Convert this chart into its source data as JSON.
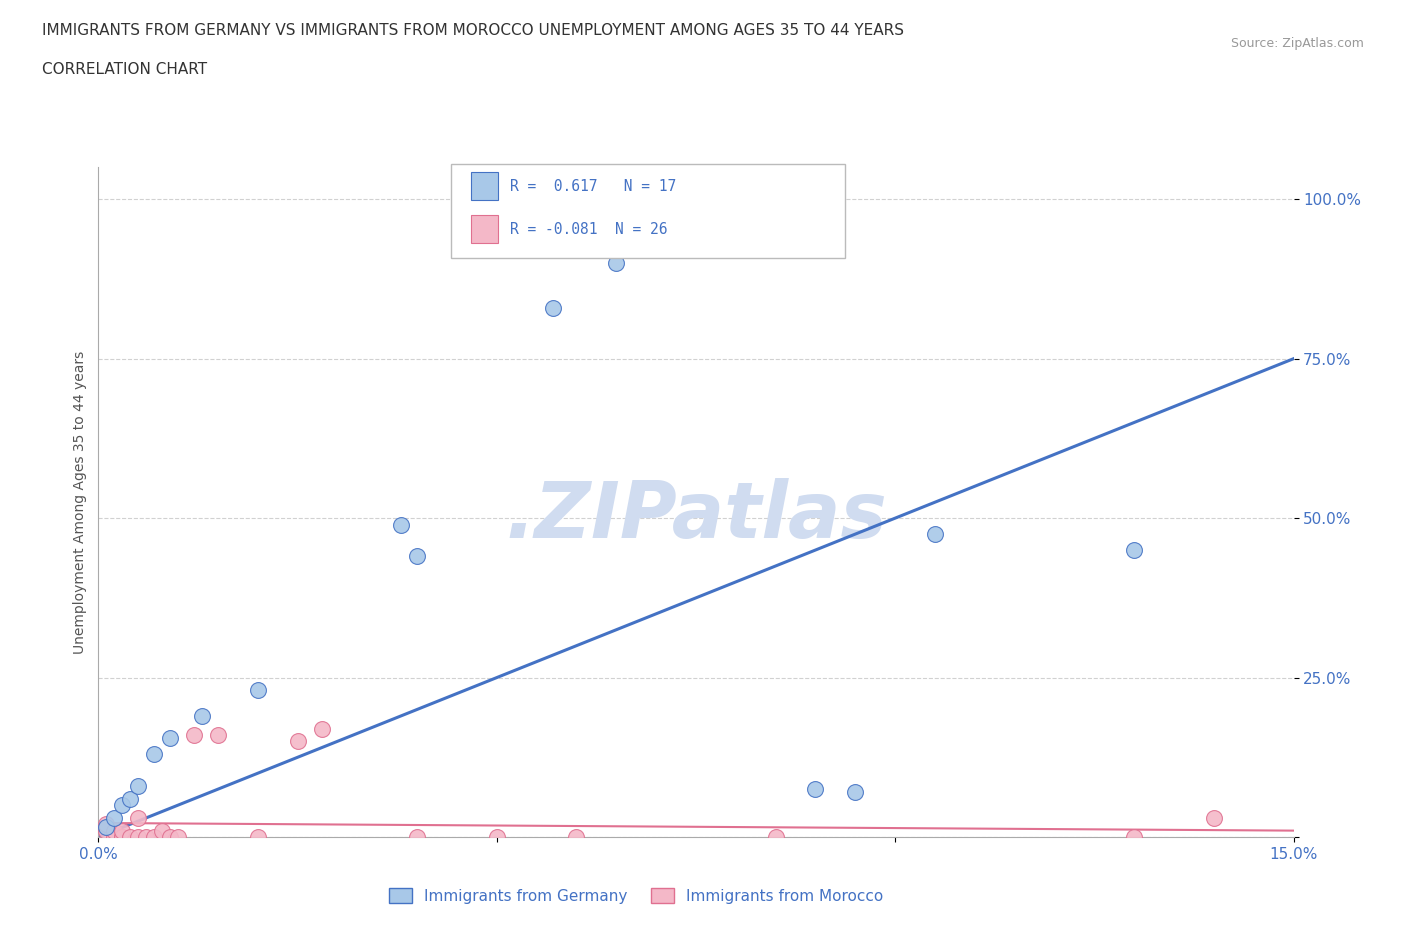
{
  "title_line1": "IMMIGRANTS FROM GERMANY VS IMMIGRANTS FROM MOROCCO UNEMPLOYMENT AMONG AGES 35 TO 44 YEARS",
  "title_line2": "CORRELATION CHART",
  "source": "Source: ZipAtlas.com",
  "ylabel": "Unemployment Among Ages 35 to 44 years",
  "xlim": [
    0.0,
    0.15
  ],
  "ylim": [
    0.0,
    1.05
  ],
  "ytick_positions": [
    0.0,
    0.25,
    0.5,
    0.75,
    1.0
  ],
  "ytick_labels": [
    "",
    "25.0%",
    "50.0%",
    "75.0%",
    "100.0%"
  ],
  "xtick_positions": [
    0.0,
    0.05,
    0.1,
    0.15
  ],
  "xtick_labels": [
    "0.0%",
    "",
    "",
    "15.0%"
  ],
  "germany_color": "#A8C8E8",
  "morocco_color": "#F4B8C8",
  "line_germany_color": "#4472C4",
  "line_morocco_color": "#E07090",
  "germany_R": 0.617,
  "germany_N": 17,
  "morocco_R": -0.081,
  "morocco_N": 26,
  "watermark_text": ".ZIPatlas",
  "watermark_color": "#D0DCF0",
  "background_color": "#FFFFFF",
  "grid_color": "#CCCCCC",
  "germany_x": [
    0.001,
    0.002,
    0.003,
    0.004,
    0.005,
    0.007,
    0.009,
    0.013,
    0.02,
    0.038,
    0.04,
    0.057,
    0.065,
    0.09,
    0.095,
    0.105,
    0.13
  ],
  "germany_y": [
    0.015,
    0.03,
    0.05,
    0.06,
    0.08,
    0.13,
    0.155,
    0.19,
    0.23,
    0.49,
    0.44,
    0.83,
    0.9,
    0.075,
    0.07,
    0.475,
    0.45
  ],
  "morocco_x": [
    0.001,
    0.001,
    0.002,
    0.002,
    0.003,
    0.003,
    0.003,
    0.004,
    0.005,
    0.005,
    0.006,
    0.007,
    0.008,
    0.009,
    0.01,
    0.012,
    0.015,
    0.02,
    0.025,
    0.028,
    0.04,
    0.05,
    0.06,
    0.085,
    0.13,
    0.14
  ],
  "morocco_y": [
    0.01,
    0.02,
    0.0,
    0.01,
    0.0,
    0.0,
    0.01,
    0.0,
    0.0,
    0.03,
    0.0,
    0.0,
    0.01,
    0.0,
    0.0,
    0.16,
    0.16,
    0.0,
    0.15,
    0.17,
    0.0,
    0.0,
    0.0,
    0.0,
    0.0,
    0.03
  ],
  "germany_line_x0": 0.0,
  "germany_line_y0": 0.0,
  "germany_line_x1": 0.15,
  "germany_line_y1": 0.75,
  "morocco_line_x0": 0.0,
  "morocco_line_y0": 0.022,
  "morocco_line_x1": 0.15,
  "morocco_line_y1": 0.01
}
